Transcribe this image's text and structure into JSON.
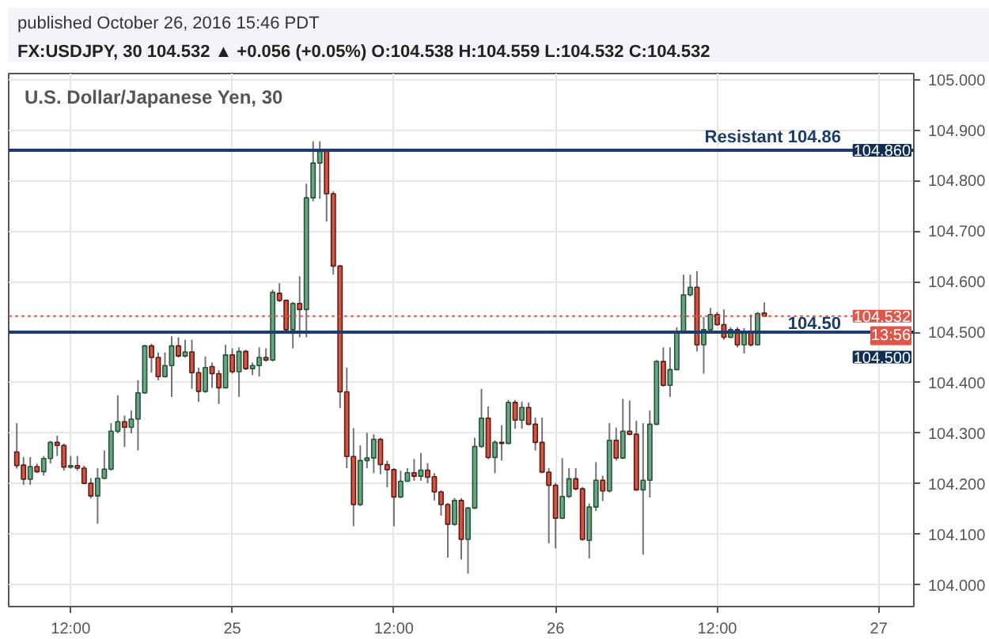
{
  "chart_data": {
    "type": "candlestick",
    "title": "U.S. Dollar/Japanese Yen, 30",
    "subtitle": "FX:USDJPY, 30  104.532 ▲ +0.056 (+0.05%)  O:104.538  H:104.559  L:104.532  C:104.532",
    "x": [
      "2016-10-24T08:00",
      "2016-10-24T08:30",
      "2016-10-24T09:00",
      "2016-10-24T09:30",
      "2016-10-24T10:00",
      "2016-10-24T10:30",
      "2016-10-24T11:00",
      "2016-10-24T11:30",
      "2016-10-24T12:00",
      "2016-10-24T12:30",
      "2016-10-24T13:00",
      "2016-10-24T13:30",
      "2016-10-24T14:00",
      "2016-10-24T14:30",
      "2016-10-24T15:00",
      "2016-10-24T15:30",
      "2016-10-24T16:00",
      "2016-10-24T16:30",
      "2016-10-24T17:00",
      "2016-10-24T17:30",
      "2016-10-24T18:00",
      "2016-10-24T18:30",
      "2016-10-24T19:00",
      "2016-10-24T19:30",
      "2016-10-24T20:00",
      "2016-10-24T20:30",
      "2016-10-24T21:00",
      "2016-10-24T21:30",
      "2016-10-24T22:00",
      "2016-10-24T22:30",
      "2016-10-24T23:00",
      "2016-10-24T23:30",
      "2016-10-25T00:00",
      "2016-10-25T00:30",
      "2016-10-25T01:00",
      "2016-10-25T01:30",
      "2016-10-25T02:00",
      "2016-10-25T02:30",
      "2016-10-25T03:00",
      "2016-10-25T03:30",
      "2016-10-25T04:00",
      "2016-10-25T04:30",
      "2016-10-25T05:00",
      "2016-10-25T05:30",
      "2016-10-25T06:00",
      "2016-10-25T06:30",
      "2016-10-25T07:00",
      "2016-10-25T07:30",
      "2016-10-25T08:00",
      "2016-10-25T08:30",
      "2016-10-25T09:00",
      "2016-10-25T09:30",
      "2016-10-25T10:00",
      "2016-10-25T10:30",
      "2016-10-25T11:00",
      "2016-10-25T11:30",
      "2016-10-25T12:00",
      "2016-10-25T12:30",
      "2016-10-25T13:00",
      "2016-10-25T13:30",
      "2016-10-25T14:00",
      "2016-10-25T14:30",
      "2016-10-25T15:00",
      "2016-10-25T15:30",
      "2016-10-25T16:00",
      "2016-10-25T16:30",
      "2016-10-25T17:00",
      "2016-10-25T17:30",
      "2016-10-25T18:00",
      "2016-10-25T18:30",
      "2016-10-25T19:00",
      "2016-10-25T19:30",
      "2016-10-25T20:00",
      "2016-10-25T20:30",
      "2016-10-25T21:00",
      "2016-10-25T21:30",
      "2016-10-25T22:00",
      "2016-10-25T22:30",
      "2016-10-25T23:00",
      "2016-10-25T23:30",
      "2016-10-26T00:00",
      "2016-10-26T00:30",
      "2016-10-26T01:00",
      "2016-10-26T01:30",
      "2016-10-26T02:00",
      "2016-10-26T02:30",
      "2016-10-26T03:00",
      "2016-10-26T03:30",
      "2016-10-26T04:00",
      "2016-10-26T04:30",
      "2016-10-26T05:00",
      "2016-10-26T05:30",
      "2016-10-26T06:00",
      "2016-10-26T06:30",
      "2016-10-26T07:00",
      "2016-10-26T07:30",
      "2016-10-26T08:00",
      "2016-10-26T08:30",
      "2016-10-26T09:00",
      "2016-10-26T09:30",
      "2016-10-26T10:00",
      "2016-10-26T10:30",
      "2016-10-26T11:00",
      "2016-10-26T11:30",
      "2016-10-26T12:00",
      "2016-10-26T12:30",
      "2016-10-26T13:00",
      "2016-10-26T13:30",
      "2016-10-26T14:00",
      "2016-10-26T14:30",
      "2016-10-26T15:00",
      "2016-10-26T15:30"
    ],
    "ohlc": [
      [
        104.263,
        104.32,
        104.23,
        104.236
      ],
      [
        104.237,
        104.253,
        104.198,
        104.209
      ],
      [
        104.209,
        104.253,
        104.198,
        104.234
      ],
      [
        104.234,
        104.24,
        104.221,
        104.224
      ],
      [
        104.224,
        104.255,
        104.216,
        104.25
      ],
      [
        104.25,
        104.285,
        104.24,
        104.282
      ],
      [
        104.282,
        104.295,
        104.255,
        104.276
      ],
      [
        104.276,
        104.28,
        104.226,
        104.233
      ],
      [
        104.233,
        104.255,
        104.23,
        104.236
      ],
      [
        104.236,
        104.255,
        104.226,
        104.231
      ],
      [
        104.231,
        104.236,
        104.199,
        104.201
      ],
      [
        104.201,
        104.211,
        104.171,
        104.176
      ],
      [
        104.176,
        104.231,
        104.121,
        104.211
      ],
      [
        104.211,
        104.266,
        104.209,
        104.229
      ],
      [
        104.229,
        104.32,
        104.226,
        104.304
      ],
      [
        104.304,
        104.375,
        104.3,
        104.323
      ],
      [
        104.323,
        104.335,
        104.273,
        104.312
      ],
      [
        104.312,
        104.345,
        104.3,
        104.328
      ],
      [
        104.328,
        104.405,
        104.266,
        104.38
      ],
      [
        104.38,
        104.475,
        104.378,
        104.473
      ],
      [
        104.473,
        104.477,
        104.42,
        104.45
      ],
      [
        104.45,
        104.46,
        104.405,
        104.412
      ],
      [
        104.412,
        104.46,
        104.41,
        104.434
      ],
      [
        104.434,
        104.492,
        104.372,
        104.473
      ],
      [
        104.473,
        104.49,
        104.45,
        104.453
      ],
      [
        104.453,
        104.485,
        104.45,
        104.461
      ],
      [
        104.461,
        104.485,
        104.388,
        104.42
      ],
      [
        104.42,
        104.43,
        104.362,
        104.383
      ],
      [
        104.383,
        104.452,
        104.38,
        104.43
      ],
      [
        104.432,
        104.44,
        104.39,
        104.418
      ],
      [
        104.418,
        104.425,
        104.358,
        104.39
      ],
      [
        104.39,
        104.475,
        104.39,
        104.455
      ],
      [
        104.455,
        104.468,
        104.418,
        104.422
      ],
      [
        104.422,
        104.47,
        104.372,
        104.462
      ],
      [
        104.462,
        104.465,
        104.425,
        104.428
      ],
      [
        104.428,
        104.44,
        104.415,
        104.434
      ],
      [
        104.434,
        104.47,
        104.412,
        104.45
      ],
      [
        104.45,
        104.468,
        104.442,
        104.445
      ],
      [
        104.445,
        104.584,
        104.442,
        104.579
      ],
      [
        104.577,
        104.597,
        104.56,
        104.563
      ],
      [
        104.563,
        104.565,
        104.502,
        104.505
      ],
      [
        104.505,
        104.56,
        104.468,
        104.557
      ],
      [
        104.557,
        104.611,
        104.49,
        104.545
      ],
      [
        104.545,
        104.794,
        104.49,
        104.766
      ],
      [
        104.766,
        104.878,
        104.759,
        104.835
      ],
      [
        104.835,
        104.878,
        104.764,
        104.858
      ],
      [
        104.858,
        104.86,
        104.719,
        104.774
      ],
      [
        104.774,
        104.779,
        104.614,
        104.631
      ],
      [
        104.631,
        104.633,
        104.35,
        104.382
      ],
      [
        104.382,
        104.43,
        104.231,
        104.254
      ],
      [
        104.254,
        104.31,
        104.116,
        104.159
      ],
      [
        104.159,
        104.276,
        104.156,
        104.246
      ],
      [
        104.246,
        104.301,
        104.231,
        104.251
      ],
      [
        104.251,
        104.298,
        104.221,
        104.288
      ],
      [
        104.288,
        104.291,
        104.219,
        104.238
      ],
      [
        104.238,
        104.246,
        104.193,
        104.228
      ],
      [
        104.228,
        104.231,
        104.116,
        104.174
      ],
      [
        104.174,
        104.226,
        104.172,
        104.205
      ],
      [
        104.205,
        104.231,
        104.204,
        104.222
      ],
      [
        104.222,
        104.249,
        104.206,
        104.215
      ],
      [
        104.215,
        104.261,
        104.206,
        104.227
      ],
      [
        104.227,
        104.241,
        104.201,
        104.213
      ],
      [
        104.214,
        104.221,
        104.167,
        104.184
      ],
      [
        104.184,
        104.187,
        104.137,
        104.159
      ],
      [
        104.159,
        104.162,
        104.054,
        104.12
      ],
      [
        104.12,
        104.172,
        104.117,
        104.167
      ],
      [
        104.167,
        104.172,
        104.05,
        104.09
      ],
      [
        104.09,
        104.154,
        104.022,
        104.152
      ],
      [
        104.152,
        104.291,
        104.15,
        104.274
      ],
      [
        104.274,
        104.388,
        104.271,
        104.33
      ],
      [
        104.33,
        104.353,
        104.249,
        104.252
      ],
      [
        104.252,
        104.286,
        104.221,
        104.282
      ],
      [
        104.282,
        104.316,
        104.246,
        104.28
      ],
      [
        104.28,
        104.366,
        104.278,
        104.361
      ],
      [
        104.361,
        104.366,
        104.309,
        104.326
      ],
      [
        104.326,
        104.363,
        104.309,
        104.351
      ],
      [
        104.351,
        104.361,
        104.316,
        104.318
      ],
      [
        104.318,
        104.331,
        104.266,
        104.282
      ],
      [
        104.282,
        104.331,
        104.221,
        104.223
      ],
      [
        104.223,
        104.231,
        104.082,
        104.197
      ],
      [
        104.197,
        104.202,
        104.072,
        104.132
      ],
      [
        104.132,
        104.251,
        104.13,
        104.175
      ],
      [
        104.175,
        104.231,
        104.172,
        104.21
      ],
      [
        104.21,
        104.231,
        104.187,
        104.19
      ],
      [
        104.19,
        104.194,
        104.087,
        104.09
      ],
      [
        104.088,
        104.161,
        104.052,
        104.154
      ],
      [
        104.154,
        104.243,
        104.146,
        104.207
      ],
      [
        104.207,
        104.216,
        104.166,
        104.186
      ],
      [
        104.186,
        104.32,
        104.183,
        104.286
      ],
      [
        104.286,
        104.311,
        104.246,
        104.251
      ],
      [
        104.251,
        104.368,
        104.249,
        104.304
      ],
      [
        104.304,
        104.365,
        104.296,
        104.298
      ],
      [
        104.298,
        104.325,
        104.186,
        104.188
      ],
      [
        104.188,
        104.32,
        104.06,
        104.207
      ],
      [
        104.207,
        104.345,
        104.173,
        104.318
      ],
      [
        104.318,
        104.445,
        104.316,
        104.442
      ],
      [
        104.442,
        104.47,
        104.392,
        104.395
      ],
      [
        104.395,
        104.47,
        104.372,
        104.426
      ],
      [
        104.426,
        104.51,
        104.425,
        104.502
      ],
      [
        104.502,
        104.614,
        104.5,
        104.574
      ],
      [
        104.574,
        104.614,
        104.571,
        104.589
      ],
      [
        104.589,
        104.621,
        104.462,
        104.475
      ],
      [
        104.475,
        104.53,
        104.418,
        104.505
      ],
      [
        104.505,
        104.548,
        104.502,
        104.535
      ],
      [
        104.535,
        104.54,
        104.513,
        104.515
      ],
      [
        104.515,
        104.545,
        104.485,
        104.49
      ],
      [
        104.49,
        104.51,
        104.488,
        104.505
      ],
      [
        104.505,
        104.51,
        104.47,
        104.475
      ],
      [
        104.475,
        104.508,
        104.458,
        104.502
      ],
      [
        104.502,
        104.535,
        104.472,
        104.475
      ],
      [
        104.475,
        104.54,
        104.475,
        104.537
      ],
      [
        104.538,
        104.559,
        104.532,
        104.532
      ]
    ],
    "xlim": [
      "2016-10-24T07:24",
      "2016-10-27T02:36"
    ],
    "xticks": [
      {
        "value": "2016-10-24T12:00",
        "label": "12:00"
      },
      {
        "value": "2016-10-25T00:00",
        "label": "25"
      },
      {
        "value": "2016-10-25T12:00",
        "label": "12:00"
      },
      {
        "value": "2016-10-26T00:00",
        "label": "26"
      },
      {
        "value": "2016-10-26T12:00",
        "label": "12:00"
      },
      {
        "value": "2016-10-27T00:00",
        "label": "27"
      }
    ],
    "ylim": [
      103.957,
      105.012
    ],
    "yticks": [
      {
        "value": 104.0,
        "label": "104.000"
      },
      {
        "value": 104.1,
        "label": "104.100"
      },
      {
        "value": 104.2,
        "label": "104.200"
      },
      {
        "value": 104.3,
        "label": "104.300"
      },
      {
        "value": 104.4,
        "label": "104.400"
      },
      {
        "value": 104.5,
        "label": "104.500"
      },
      {
        "value": 104.6,
        "label": "104.600"
      },
      {
        "value": 104.7,
        "label": "104.700"
      },
      {
        "value": 104.8,
        "label": "104.800"
      },
      {
        "value": 104.9,
        "label": "104.900"
      },
      {
        "value": 105.0,
        "label": "105.000"
      }
    ],
    "grid": true,
    "ref_lines": [
      {
        "axis": "y",
        "value": 104.86,
        "label": "Resistant 104.86",
        "color": "#1c3d6b"
      },
      {
        "axis": "y",
        "value": 104.5,
        "label": "104.50",
        "color": "#1c3d6b"
      },
      {
        "axis": "y",
        "value": 104.532,
        "color": "#e0564a",
        "line_style": "dotted"
      }
    ],
    "annotations": [
      "published October 26, 2016 15:46 PDT",
      {
        "text": "104.860",
        "y": 104.86
      },
      {
        "text": "104.532",
        "y": 104.532
      },
      "13:56",
      {
        "text": "104.500",
        "y": 104.5
      }
    ]
  }
}
